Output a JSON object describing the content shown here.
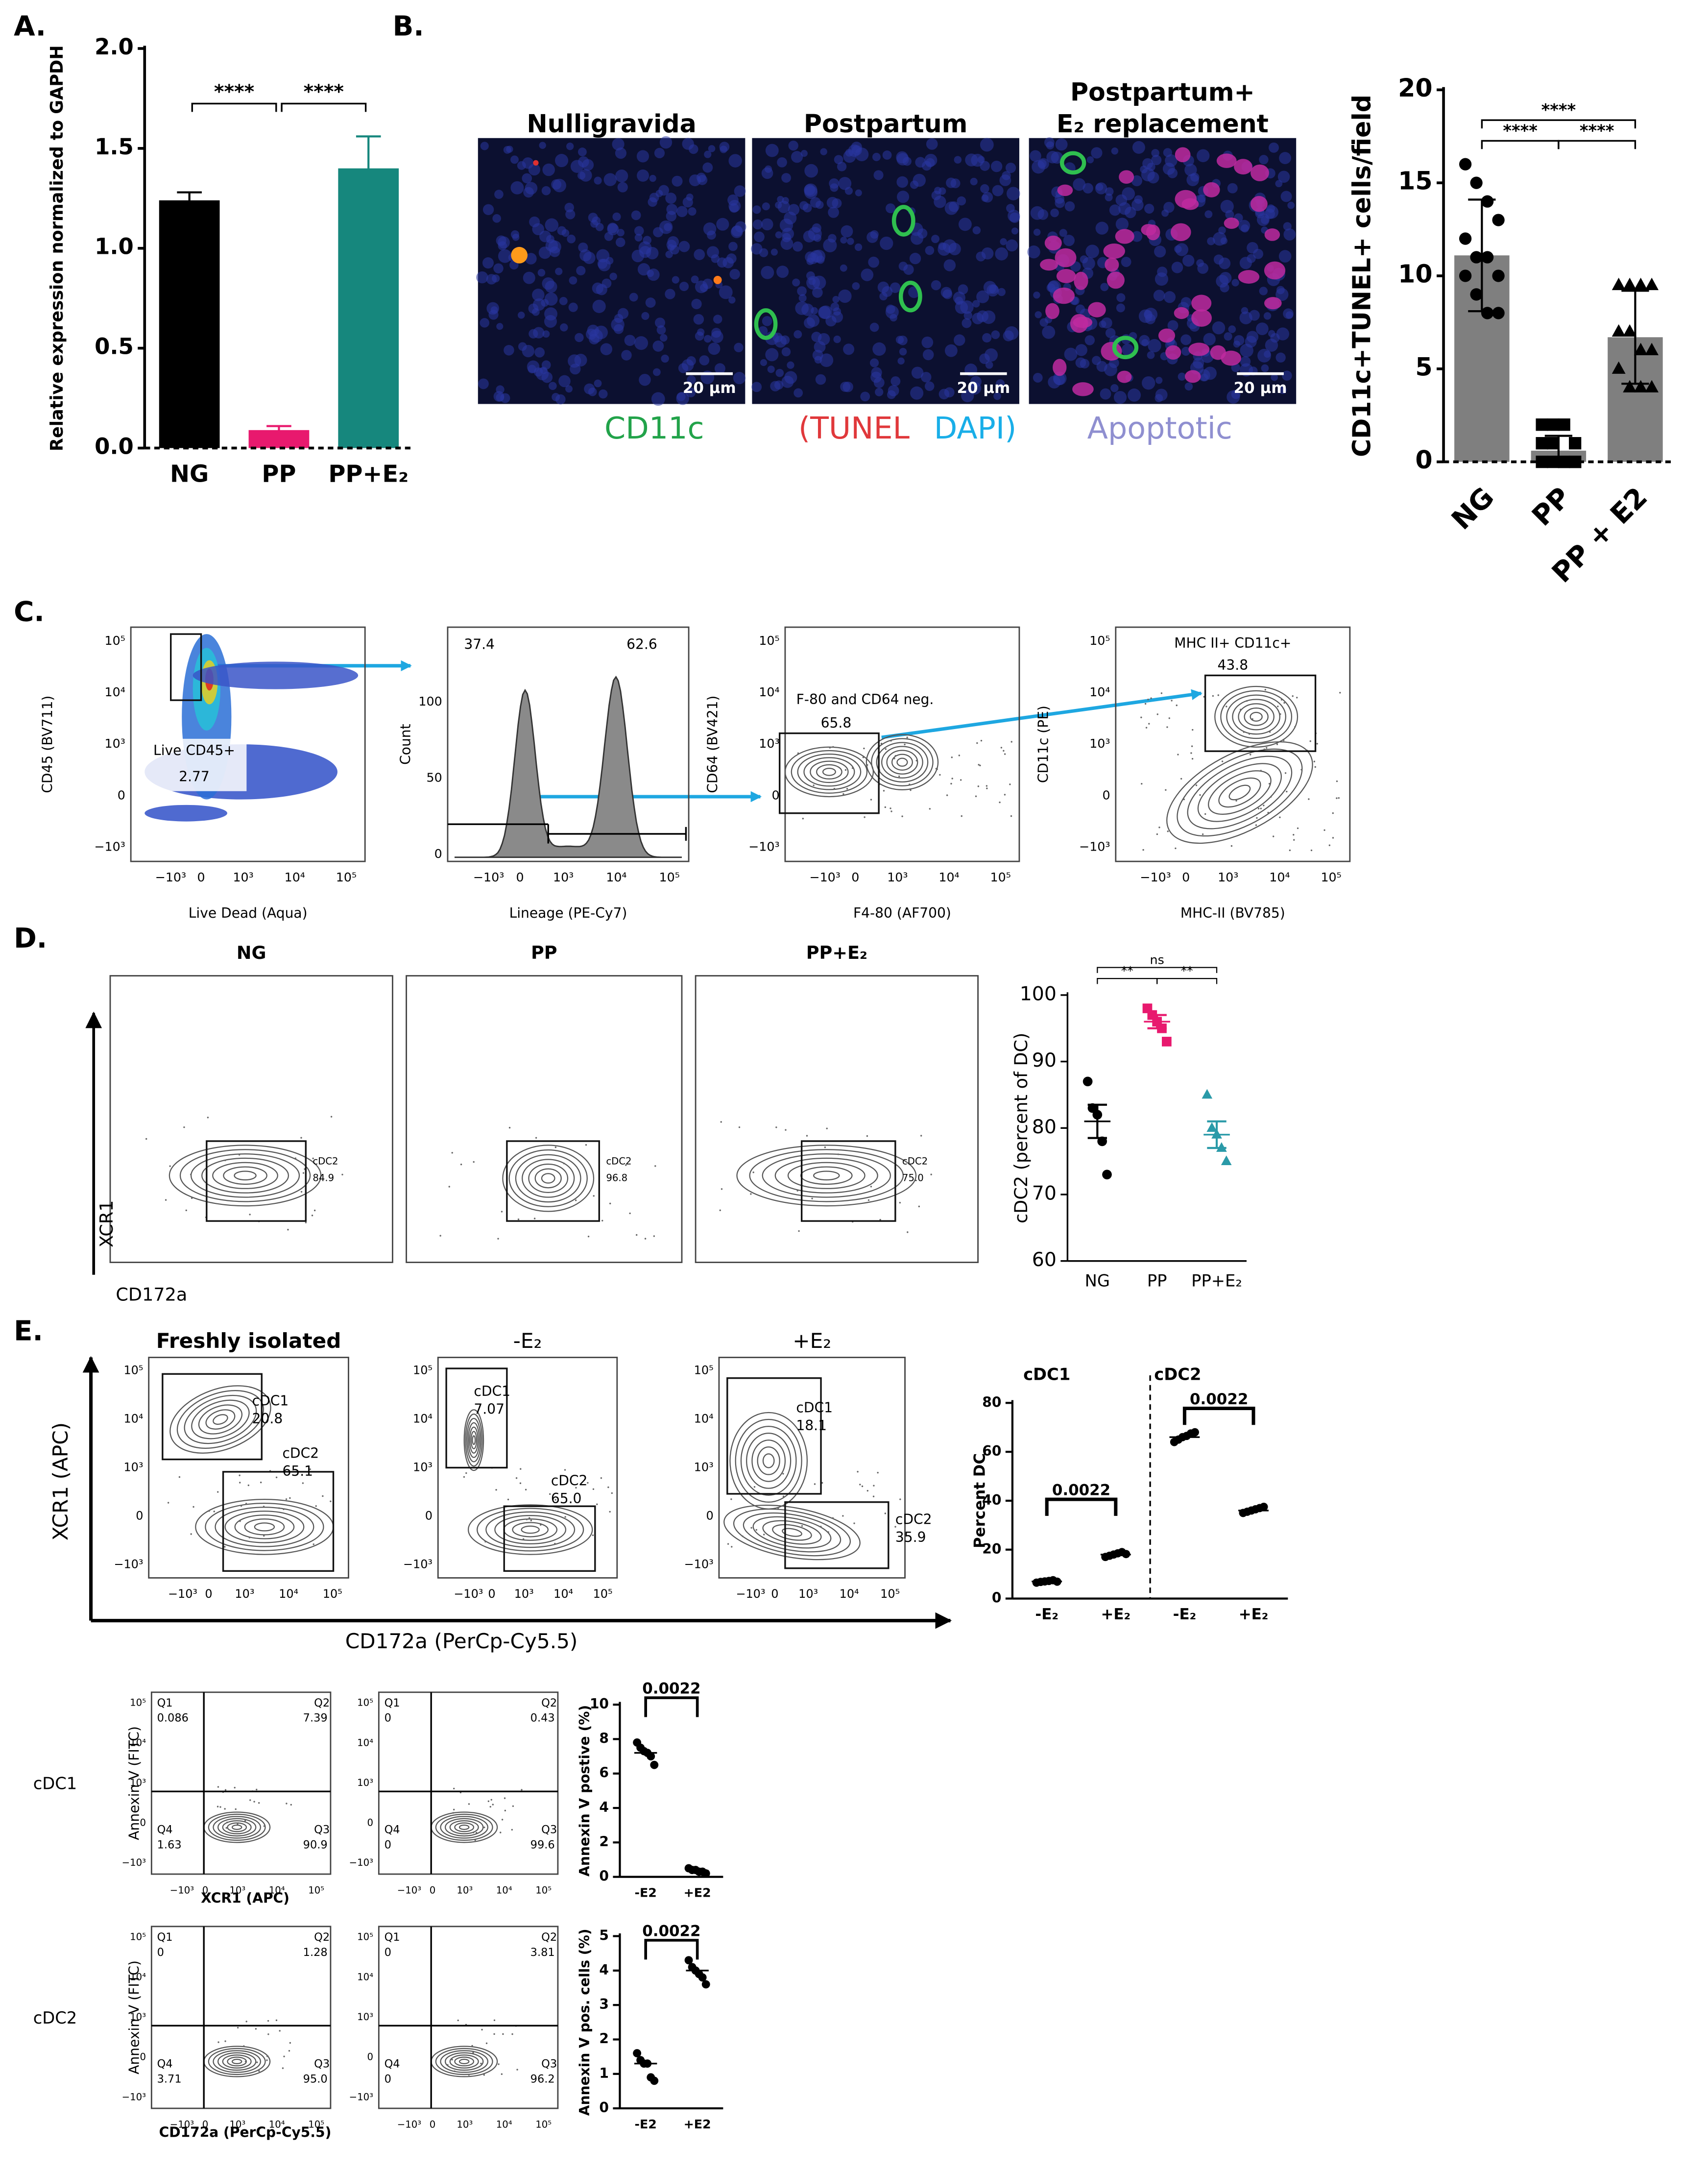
{
  "panel_a": {
    "label": "A.",
    "type": "bar",
    "y_label": "Relative expression normalized to GAPDH",
    "categories": [
      "NG",
      "PP",
      "PP+E₂"
    ],
    "values": [
      1.24,
      0.09,
      1.4
    ],
    "errors": [
      0.04,
      0.02,
      0.16
    ],
    "colors": [
      "#000000",
      "#e8196e",
      "#16877d"
    ],
    "ylim": [
      0,
      2
    ],
    "yticks": [
      {
        "value": 0,
        "label": "0.0"
      },
      {
        "value": 0.5,
        "label": "0.5"
      },
      {
        "value": 1,
        "label": "1.0"
      },
      {
        "value": 1.5,
        "label": "1.5"
      },
      {
        "value": 2,
        "label": "2.0"
      }
    ],
    "significance": [
      "****",
      "****"
    ]
  },
  "panel_b": {
    "label": "B.",
    "images": [
      {
        "title": [
          "Nulligravida"
        ],
        "scale_bar": "20 µm"
      },
      {
        "title": [
          "Postpartum"
        ],
        "scale_bar": "20 µm"
      },
      {
        "title": [
          "Postpartum+",
          "E₂ replacement"
        ],
        "scale_bar": "20 µm"
      }
    ],
    "stain_legend": [
      {
        "text": "CD11c",
        "color": "#22a34a"
      },
      {
        "text": "(TUNEL",
        "color": "#e0383b"
      },
      {
        "text": "DAPI)",
        "color": "#19aee8"
      },
      {
        "text": "Apoptotic",
        "color": "#8f8fd0"
      }
    ],
    "chart": {
      "type": "bar",
      "y_label": "CD11c+TUNEL+ cells/field",
      "categories": [
        "NG",
        "PP",
        "PP + E2"
      ],
      "values": [
        11.1,
        0.6,
        6.7
      ],
      "errors": [
        3.0,
        0.8,
        2.5
      ],
      "color": "#7f7f7f",
      "markers": [
        "circle",
        "square",
        "triangle"
      ],
      "points": [
        [
          16,
          15,
          14,
          13,
          12,
          11,
          11,
          10,
          10,
          9,
          8,
          8
        ],
        [
          2,
          2,
          2,
          1,
          1,
          1,
          0,
          0,
          0,
          0,
          0,
          0
        ],
        [
          9.5,
          9.5,
          9.5,
          9.5,
          7,
          7,
          6,
          6,
          5,
          4,
          4,
          4
        ]
      ],
      "ylim": [
        0,
        20
      ],
      "yticks": [
        0,
        5,
        10,
        15,
        20
      ],
      "significance": [
        "****",
        "****",
        "****"
      ]
    }
  },
  "log_axis_ticks": {
    "x": [
      "−10³",
      "0",
      "10³",
      "10⁴",
      "10⁵"
    ],
    "y": [
      "10⁵",
      "10⁴",
      "10³",
      "0",
      "−10³"
    ]
  },
  "panel_c": {
    "label": "C.",
    "plots": [
      {
        "x_label": "Live Dead (Aqua)",
        "y_label": "CD45 (BV711)",
        "gates": [
          "Live CD45+",
          "2.77"
        ]
      },
      {
        "x_label": "Lineage (PE-Cy7)",
        "y_label": "Count",
        "y_ticks": [
          "100",
          "50",
          "0"
        ],
        "gates": [
          "37.4",
          "62.6"
        ]
      },
      {
        "x_label": "F4-80 (AF700)",
        "y_label": "CD64 (BV421)",
        "gates": [
          "F-80 and CD64 neg.",
          "65.8"
        ]
      },
      {
        "x_label": "MHC-II (BV785)",
        "y_label": "CD11c (PE)",
        "gates": [
          "MHC II+ CD11c+",
          "43.8"
        ]
      }
    ]
  },
  "panel_d": {
    "label": "D.",
    "x_label": "CD172a",
    "y_label": "XCR1",
    "plots": [
      {
        "title": "NG",
        "gate": "cDC2",
        "value": "84.9"
      },
      {
        "title": "PP",
        "gate": "cDC2",
        "value": "96.8"
      },
      {
        "title": "PP+E₂",
        "gate": "cDC2",
        "value": "75.0"
      }
    ],
    "chart": {
      "type": "dot",
      "y_label": "cDC2 (percent of DC)",
      "categories": [
        "NG",
        "PP",
        "PP+E₂"
      ],
      "colors": [
        "#000000",
        "#e8196e",
        "#2a9aa8"
      ],
      "markers": [
        "circle",
        "square",
        "triangle"
      ],
      "points": [
        [
          87,
          83,
          82,
          78,
          73
        ],
        [
          98,
          97,
          96,
          95,
          93
        ],
        [
          85,
          80,
          79,
          77,
          75
        ]
      ],
      "values": [
        81,
        96,
        79
      ],
      "errors": [
        2.5,
        1,
        2
      ],
      "ylim": [
        60,
        100
      ],
      "yticks": [
        60,
        70,
        80,
        90,
        100
      ],
      "significance": [
        "**",
        "**",
        "ns"
      ]
    }
  },
  "panel_e": {
    "label": "E.",
    "x_label": "CD172a (PerCp-Cy5.5)",
    "y_label": "XCR1 (APC)",
    "plots": [
      {
        "title": "Freshly isolated",
        "gates": [
          {
            "name": "cDC1",
            "value": "20.8"
          },
          {
            "name": "cDC2",
            "value": "65.1"
          }
        ]
      },
      {
        "title": "-E₂",
        "gates": [
          {
            "name": "cDC1",
            "value": "7.07"
          },
          {
            "name": "cDC2",
            "value": "65.0"
          }
        ]
      },
      {
        "title": "+E₂",
        "gates": [
          {
            "name": "cDC1",
            "value": "18.1"
          },
          {
            "name": "cDC2",
            "value": "35.9"
          }
        ]
      }
    ],
    "chart": {
      "type": "dot",
      "y_label": "Percent DC",
      "groups": [
        "cDC1",
        "cDC2"
      ],
      "categories": [
        "-E₂",
        "+E₂",
        "-E₂",
        "+E₂"
      ],
      "points": [
        [
          6.5,
          6.8,
          7,
          7.2,
          7.5,
          6.9
        ],
        [
          17,
          17.5,
          18,
          18.5,
          19,
          18.2
        ],
        [
          64,
          65,
          66,
          66.5,
          67.5,
          68
        ],
        [
          35,
          35.5,
          36,
          36.5,
          37,
          37.5
        ]
      ],
      "values": [
        7,
        18,
        66,
        36
      ],
      "ylim": [
        0,
        80
      ],
      "yticks": [
        0,
        20,
        40,
        60,
        80
      ],
      "p_values": [
        "0.0022",
        "0.0022"
      ]
    },
    "apoptosis": {
      "y_label": "Annexin V (FITC)",
      "rows": [
        {
          "label": "cDC1",
          "x_label": "XCR1 (APC)",
          "plots": [
            {
              "quadrants": [
                {
                  "name": "Q1",
                  "value": "0.086"
                },
                {
                  "name": "Q2",
                  "value": "7.39"
                },
                {
                  "name": "Q3",
                  "value": "90.9"
                },
                {
                  "name": "Q4",
                  "value": "1.63"
                }
              ]
            },
            {
              "quadrants": [
                {
                  "name": "Q1",
                  "value": "0"
                },
                {
                  "name": "Q2",
                  "value": "0.43"
                },
                {
                  "name": "Q3",
                  "value": "99.6"
                },
                {
                  "name": "Q4",
                  "value": "0"
                }
              ]
            }
          ],
          "chart": {
            "type": "dot",
            "y_label": "Annexin V postive (%)",
            "categories": [
              "-E2",
              "+E2"
            ],
            "points": [
              [
                7.8,
                7.5,
                7.3,
                7.2,
                7.0,
                6.5
              ],
              [
                0.5,
                0.4,
                0.4,
                0.3,
                0.3,
                0.2
              ]
            ],
            "values": [
              7.2,
              0.35
            ],
            "ylim": [
              0,
              10
            ],
            "yticks": [
              0,
              2,
              4,
              6,
              8,
              10
            ],
            "p_values": [
              "0.0022"
            ]
          }
        },
        {
          "label": "cDC2",
          "x_label": "CD172a (PerCp-Cy5.5)",
          "plots": [
            {
              "quadrants": [
                {
                  "name": "Q1",
                  "value": "0"
                },
                {
                  "name": "Q2",
                  "value": "1.28"
                },
                {
                  "name": "Q3",
                  "value": "95.0"
                },
                {
                  "name": "Q4",
                  "value": "3.71"
                }
              ]
            },
            {
              "quadrants": [
                {
                  "name": "Q1",
                  "value": "0"
                },
                {
                  "name": "Q2",
                  "value": "3.81"
                },
                {
                  "name": "Q3",
                  "value": "96.2"
                },
                {
                  "name": "Q4",
                  "value": "0"
                }
              ]
            }
          ],
          "chart": {
            "type": "dot",
            "y_label": "Annexin V pos. cells (%)",
            "categories": [
              "-E2",
              "+E2"
            ],
            "points": [
              [
                1.6,
                1.4,
                1.3,
                1.3,
                0.9,
                0.8
              ],
              [
                4.3,
                4.1,
                4.0,
                3.9,
                3.8,
                3.6
              ]
            ],
            "values": [
              1.3,
              4.0
            ],
            "ylim": [
              0,
              5
            ],
            "yticks": [
              0,
              1,
              2,
              3,
              4,
              5
            ],
            "p_values": [
              "0.0022"
            ]
          }
        }
      ]
    }
  }
}
